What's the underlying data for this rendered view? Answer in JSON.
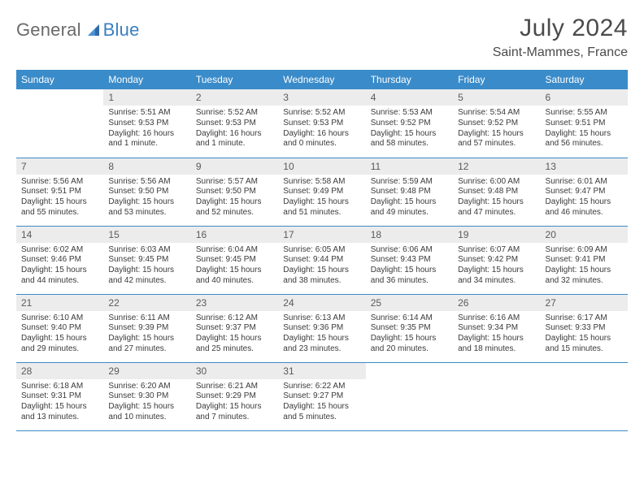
{
  "logo": {
    "part1": "General",
    "part2": "Blue"
  },
  "title": "July 2024",
  "location": "Saint-Mammes, France",
  "colors": {
    "headerBg": "#3a8bc9",
    "dayNumBg": "#ececec",
    "ruleColor": "#3a8bc9"
  },
  "dayHeaders": [
    "Sunday",
    "Monday",
    "Tuesday",
    "Wednesday",
    "Thursday",
    "Friday",
    "Saturday"
  ],
  "weeks": [
    [
      null,
      {
        "n": "1",
        "sr": "5:51 AM",
        "ss": "9:53 PM",
        "dl": "16 hours and 1 minute."
      },
      {
        "n": "2",
        "sr": "5:52 AM",
        "ss": "9:53 PM",
        "dl": "16 hours and 1 minute."
      },
      {
        "n": "3",
        "sr": "5:52 AM",
        "ss": "9:53 PM",
        "dl": "16 hours and 0 minutes."
      },
      {
        "n": "4",
        "sr": "5:53 AM",
        "ss": "9:52 PM",
        "dl": "15 hours and 58 minutes."
      },
      {
        "n": "5",
        "sr": "5:54 AM",
        "ss": "9:52 PM",
        "dl": "15 hours and 57 minutes."
      },
      {
        "n": "6",
        "sr": "5:55 AM",
        "ss": "9:51 PM",
        "dl": "15 hours and 56 minutes."
      }
    ],
    [
      {
        "n": "7",
        "sr": "5:56 AM",
        "ss": "9:51 PM",
        "dl": "15 hours and 55 minutes."
      },
      {
        "n": "8",
        "sr": "5:56 AM",
        "ss": "9:50 PM",
        "dl": "15 hours and 53 minutes."
      },
      {
        "n": "9",
        "sr": "5:57 AM",
        "ss": "9:50 PM",
        "dl": "15 hours and 52 minutes."
      },
      {
        "n": "10",
        "sr": "5:58 AM",
        "ss": "9:49 PM",
        "dl": "15 hours and 51 minutes."
      },
      {
        "n": "11",
        "sr": "5:59 AM",
        "ss": "9:48 PM",
        "dl": "15 hours and 49 minutes."
      },
      {
        "n": "12",
        "sr": "6:00 AM",
        "ss": "9:48 PM",
        "dl": "15 hours and 47 minutes."
      },
      {
        "n": "13",
        "sr": "6:01 AM",
        "ss": "9:47 PM",
        "dl": "15 hours and 46 minutes."
      }
    ],
    [
      {
        "n": "14",
        "sr": "6:02 AM",
        "ss": "9:46 PM",
        "dl": "15 hours and 44 minutes."
      },
      {
        "n": "15",
        "sr": "6:03 AM",
        "ss": "9:45 PM",
        "dl": "15 hours and 42 minutes."
      },
      {
        "n": "16",
        "sr": "6:04 AM",
        "ss": "9:45 PM",
        "dl": "15 hours and 40 minutes."
      },
      {
        "n": "17",
        "sr": "6:05 AM",
        "ss": "9:44 PM",
        "dl": "15 hours and 38 minutes."
      },
      {
        "n": "18",
        "sr": "6:06 AM",
        "ss": "9:43 PM",
        "dl": "15 hours and 36 minutes."
      },
      {
        "n": "19",
        "sr": "6:07 AM",
        "ss": "9:42 PM",
        "dl": "15 hours and 34 minutes."
      },
      {
        "n": "20",
        "sr": "6:09 AM",
        "ss": "9:41 PM",
        "dl": "15 hours and 32 minutes."
      }
    ],
    [
      {
        "n": "21",
        "sr": "6:10 AM",
        "ss": "9:40 PM",
        "dl": "15 hours and 29 minutes."
      },
      {
        "n": "22",
        "sr": "6:11 AM",
        "ss": "9:39 PM",
        "dl": "15 hours and 27 minutes."
      },
      {
        "n": "23",
        "sr": "6:12 AM",
        "ss": "9:37 PM",
        "dl": "15 hours and 25 minutes."
      },
      {
        "n": "24",
        "sr": "6:13 AM",
        "ss": "9:36 PM",
        "dl": "15 hours and 23 minutes."
      },
      {
        "n": "25",
        "sr": "6:14 AM",
        "ss": "9:35 PM",
        "dl": "15 hours and 20 minutes."
      },
      {
        "n": "26",
        "sr": "6:16 AM",
        "ss": "9:34 PM",
        "dl": "15 hours and 18 minutes."
      },
      {
        "n": "27",
        "sr": "6:17 AM",
        "ss": "9:33 PM",
        "dl": "15 hours and 15 minutes."
      }
    ],
    [
      {
        "n": "28",
        "sr": "6:18 AM",
        "ss": "9:31 PM",
        "dl": "15 hours and 13 minutes."
      },
      {
        "n": "29",
        "sr": "6:20 AM",
        "ss": "9:30 PM",
        "dl": "15 hours and 10 minutes."
      },
      {
        "n": "30",
        "sr": "6:21 AM",
        "ss": "9:29 PM",
        "dl": "15 hours and 7 minutes."
      },
      {
        "n": "31",
        "sr": "6:22 AM",
        "ss": "9:27 PM",
        "dl": "15 hours and 5 minutes."
      },
      null,
      null,
      null
    ]
  ],
  "labels": {
    "sunrise": "Sunrise:",
    "sunset": "Sunset:",
    "daylight": "Daylight:"
  }
}
